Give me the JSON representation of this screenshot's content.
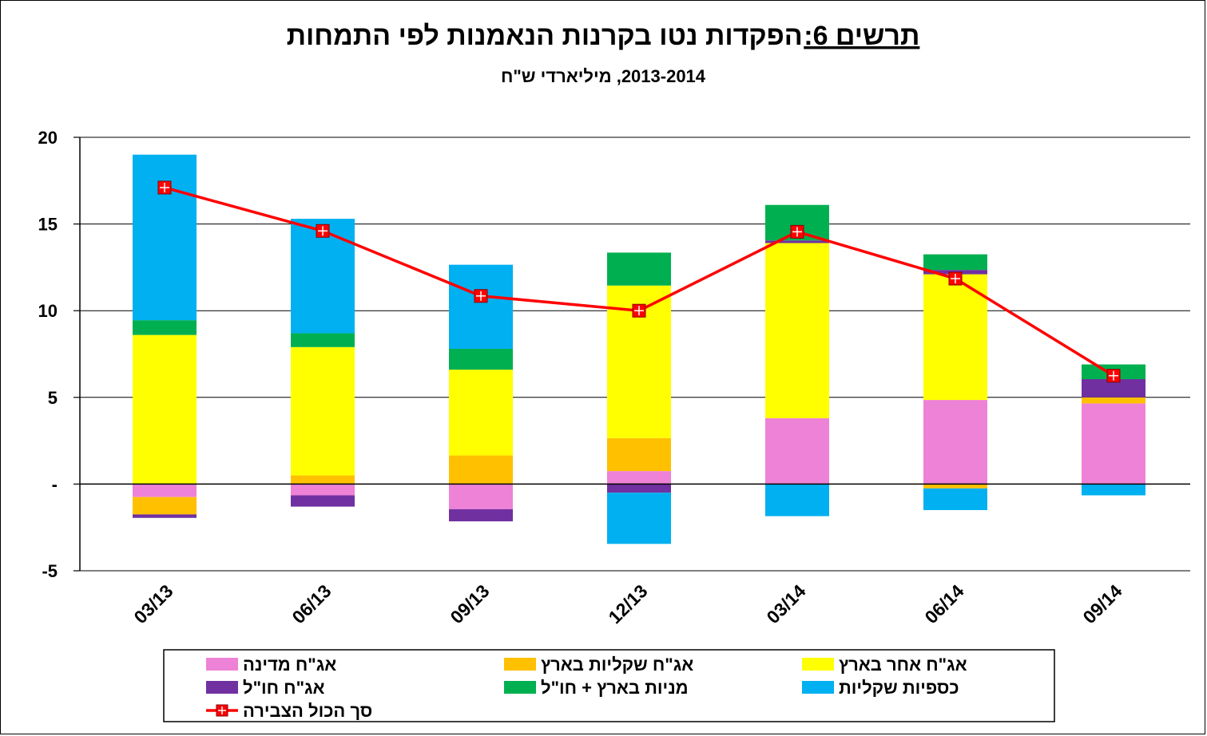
{
  "chart_data": {
    "type": "bar",
    "stacked": true,
    "title_prefix": "תרשים 6:",
    "title_main": "הפקדות נטו בקרנות הנאמנות לפי התמחות",
    "subtitle": "2013-2014,  מיליארדי ש\"ח",
    "categories": [
      "03/13",
      "06/13",
      "09/13",
      "12/13",
      "03/14",
      "06/14",
      "09/14"
    ],
    "ylim": [
      -5,
      20
    ],
    "yticks": [
      {
        "value": 20,
        "label": "20"
      },
      {
        "value": 15,
        "label": "15"
      },
      {
        "value": 10,
        "label": "10"
      },
      {
        "value": 5,
        "label": "5"
      },
      {
        "value": 0,
        "label": "-"
      },
      {
        "value": -5,
        "label": "-5"
      }
    ],
    "grid": true,
    "series": [
      {
        "name": "אג\"ח מדינה",
        "color": "#ee82d6",
        "values": [
          -0.75,
          -0.65,
          -1.45,
          0.75,
          3.8,
          4.85,
          4.65
        ]
      },
      {
        "name": "אג\"ח שקליות בארץ",
        "color": "#ffc000",
        "values": [
          -1.0,
          0.5,
          1.65,
          1.9,
          0.0,
          -0.25,
          0.35
        ]
      },
      {
        "name": "אג\"ח אחר בארץ",
        "color": "#ffff00",
        "values": [
          8.6,
          7.4,
          4.95,
          8.8,
          10.1,
          7.25,
          0.0
        ]
      },
      {
        "name": "אג\"ח חו\"ל",
        "color": "#7030a0",
        "values": [
          -0.2,
          -0.65,
          -0.7,
          -0.5,
          0.15,
          0.25,
          1.05
        ]
      },
      {
        "name": "מניות בארץ + חו\"ל",
        "color": "#00b050",
        "values": [
          0.85,
          0.8,
          1.2,
          1.9,
          2.05,
          0.9,
          0.85
        ]
      },
      {
        "name": "כספיות שקליות",
        "color": "#00b0f0",
        "values": [
          9.55,
          6.6,
          4.85,
          -2.95,
          -1.85,
          -1.25,
          -0.65
        ]
      }
    ],
    "line": {
      "name": "סך הכול הצבירה",
      "color": "#ff0000",
      "values": [
        17.1,
        14.6,
        10.85,
        10.0,
        14.55,
        11.85,
        6.25
      ]
    }
  }
}
